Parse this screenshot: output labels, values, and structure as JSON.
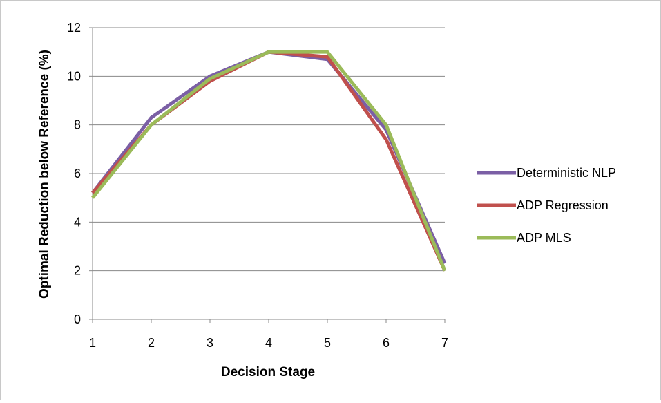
{
  "chart_data": {
    "type": "line",
    "title": "",
    "xlabel": "Decision Stage",
    "ylabel": "Optimal Reduction below Reference (%)",
    "x": [
      1,
      2,
      3,
      4,
      5,
      6,
      7
    ],
    "xlim": [
      1,
      7
    ],
    "ylim": [
      0,
      12
    ],
    "yticks": [
      0,
      2,
      4,
      6,
      8,
      10,
      12
    ],
    "grid": "horizontal",
    "legend_position": "right",
    "series": [
      {
        "name": "Deterministic NLP",
        "color": "#7b5fa5",
        "values": [
          5.2,
          8.3,
          10.0,
          11.0,
          10.7,
          7.8,
          2.3
        ]
      },
      {
        "name": "ADP Regression",
        "color": "#c0504d",
        "values": [
          5.2,
          8.0,
          9.8,
          11.0,
          10.8,
          7.4,
          2.0
        ]
      },
      {
        "name": "ADP MLS",
        "color": "#9bbb59",
        "values": [
          5.0,
          8.0,
          9.9,
          11.0,
          11.0,
          8.0,
          2.0
        ]
      }
    ]
  }
}
